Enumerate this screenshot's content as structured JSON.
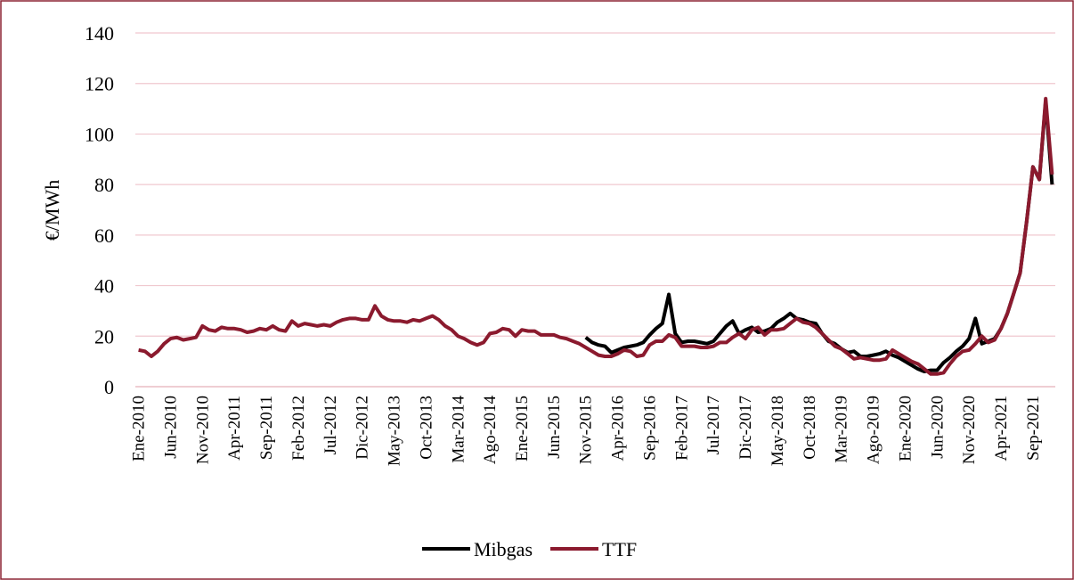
{
  "chart_data": {
    "type": "line",
    "y_label": "€/MWh",
    "ylim": [
      0,
      140
    ],
    "yticks": [
      0,
      20,
      40,
      60,
      80,
      100,
      120,
      140
    ],
    "grid": true,
    "legend": "bottom",
    "categories": [
      "Ene-2010",
      null,
      null,
      null,
      null,
      "Jun-2010",
      null,
      null,
      null,
      null,
      "Nov-2010",
      null,
      null,
      null,
      null,
      "Apr-2011",
      null,
      null,
      null,
      null,
      "Sep-2011",
      null,
      null,
      null,
      null,
      "Feb-2012",
      null,
      null,
      null,
      null,
      "Jul-2012",
      null,
      null,
      null,
      null,
      "Dic-2012",
      null,
      null,
      null,
      null,
      "May-2013",
      null,
      null,
      null,
      null,
      "Oct-2013",
      null,
      null,
      null,
      null,
      "Mar-2014",
      null,
      null,
      null,
      null,
      "Ago-2014",
      null,
      null,
      null,
      null,
      "Ene-2015",
      null,
      null,
      null,
      null,
      "Jun-2015",
      null,
      null,
      null,
      null,
      "Nov-2015",
      null,
      null,
      null,
      null,
      "Apr-2016",
      null,
      null,
      null,
      null,
      "Sep-2016",
      null,
      null,
      null,
      null,
      "Feb-2017",
      null,
      null,
      null,
      null,
      "Jul-2017",
      null,
      null,
      null,
      null,
      "Dic-2017",
      null,
      null,
      null,
      null,
      "May-2018",
      null,
      null,
      null,
      null,
      "Oct-2018",
      null,
      null,
      null,
      null,
      "Mar-2019",
      null,
      null,
      null,
      null,
      "Ago-2019",
      null,
      null,
      null,
      null,
      "Ene-2020",
      null,
      null,
      null,
      null,
      "Jun-2020",
      null,
      null,
      null,
      null,
      "Nov-2020",
      null,
      null,
      null,
      null,
      "Apr-2021",
      null,
      null,
      null,
      null,
      "Sep-2021",
      null,
      null,
      null
    ],
    "series": [
      {
        "name": "Mibgas",
        "color": "#000000",
        "values": [
          null,
          null,
          null,
          null,
          null,
          null,
          null,
          null,
          null,
          null,
          null,
          null,
          null,
          null,
          null,
          null,
          null,
          null,
          null,
          null,
          null,
          null,
          null,
          null,
          null,
          null,
          null,
          null,
          null,
          null,
          null,
          null,
          null,
          null,
          null,
          null,
          null,
          null,
          null,
          null,
          null,
          null,
          null,
          null,
          null,
          null,
          null,
          null,
          null,
          null,
          null,
          null,
          null,
          null,
          null,
          null,
          null,
          null,
          null,
          null,
          null,
          null,
          null,
          null,
          null,
          null,
          null,
          null,
          null,
          null,
          19.5,
          17.5,
          16.5,
          16,
          13.5,
          14.5,
          15.5,
          16,
          16.5,
          17.5,
          20.5,
          23,
          25,
          36.5,
          21,
          17.5,
          18,
          18,
          17.5,
          17,
          18,
          21,
          24,
          26,
          21,
          22.5,
          23.5,
          21.5,
          22,
          23,
          25.5,
          27,
          29,
          27,
          26.5,
          25.5,
          25,
          21,
          18,
          17,
          15,
          13.5,
          14,
          12,
          12,
          12.5,
          13,
          14,
          12.5,
          11.5,
          10,
          8.5,
          7,
          6,
          6.5,
          6.5,
          9.5,
          11.5,
          14,
          16,
          19,
          27,
          17,
          18,
          19,
          23,
          29,
          37,
          45,
          65,
          87,
          82,
          113,
          80
        ]
      },
      {
        "name": "TTF",
        "color": "#8b1a2e",
        "values": [
          14.5,
          14,
          12,
          14,
          17,
          19,
          19.5,
          18.5,
          19,
          19.5,
          24,
          22.5,
          22,
          23.5,
          23,
          23,
          22.5,
          21.5,
          22,
          23,
          22.5,
          24,
          22.5,
          22,
          26,
          24,
          25,
          24.5,
          24,
          24.5,
          24,
          25.5,
          26.5,
          27,
          27,
          26.5,
          26.5,
          32,
          28,
          26.5,
          26,
          26,
          25.5,
          26.5,
          26,
          27,
          28,
          26.5,
          24,
          22.5,
          20,
          19,
          17.5,
          16.5,
          17.5,
          21,
          21.5,
          23,
          22.5,
          20,
          22.5,
          22,
          22,
          20.5,
          20.5,
          20.5,
          19.5,
          19,
          18,
          17,
          15.5,
          14,
          12.5,
          12,
          12,
          13,
          14.5,
          14,
          12,
          12.5,
          16.5,
          18,
          18,
          20.5,
          19.5,
          16,
          16,
          16,
          15.5,
          15.5,
          16,
          17.5,
          17.5,
          19.5,
          21,
          19,
          22.5,
          23.5,
          20.5,
          22.5,
          22.5,
          23,
          25,
          27,
          25.5,
          25,
          23.5,
          21,
          18.5,
          16,
          15,
          13,
          11,
          11.5,
          11,
          10.5,
          10.5,
          11,
          14.5,
          13,
          11.5,
          10,
          9,
          7,
          5,
          5,
          5.5,
          9,
          12,
          14,
          14.5,
          17,
          20,
          17.5,
          18.5,
          23,
          29,
          37,
          45,
          65,
          87,
          82,
          114,
          84
        ]
      }
    ]
  }
}
